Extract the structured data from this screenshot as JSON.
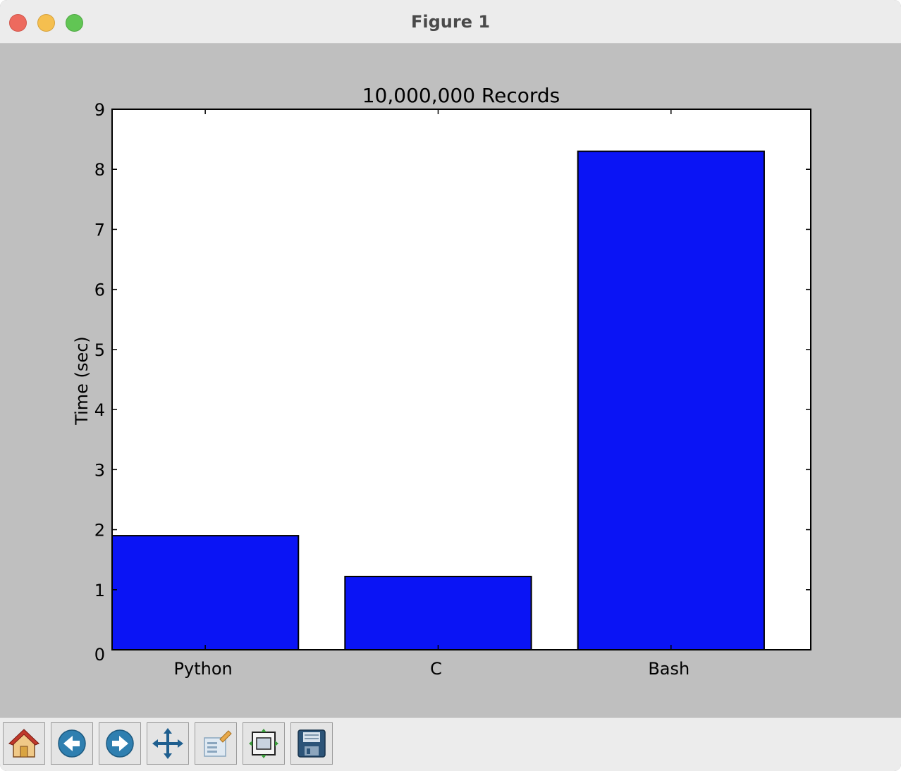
{
  "window": {
    "title": "Figure 1"
  },
  "toolbar": {
    "buttons": [
      {
        "name": "home-icon",
        "label": "Home"
      },
      {
        "name": "back-icon",
        "label": "Back"
      },
      {
        "name": "forward-icon",
        "label": "Forward"
      },
      {
        "name": "pan-icon",
        "label": "Pan"
      },
      {
        "name": "zoom-icon",
        "label": "Zoom"
      },
      {
        "name": "subplots-icon",
        "label": "Configure subplots"
      },
      {
        "name": "save-icon",
        "label": "Save"
      }
    ]
  },
  "chart_data": {
    "type": "bar",
    "title": "10,000,000 Records",
    "xlabel": "",
    "ylabel": "Time (sec)",
    "categories": [
      "Python",
      "C",
      "Bash"
    ],
    "values": [
      1.9,
      1.22,
      8.3
    ],
    "ylim": [
      0,
      9
    ],
    "yticks": [
      "0",
      "1",
      "2",
      "3",
      "4",
      "5",
      "6",
      "7",
      "8",
      "9"
    ],
    "bar_color": "#0a14f5",
    "grid": false,
    "legend": "none"
  }
}
